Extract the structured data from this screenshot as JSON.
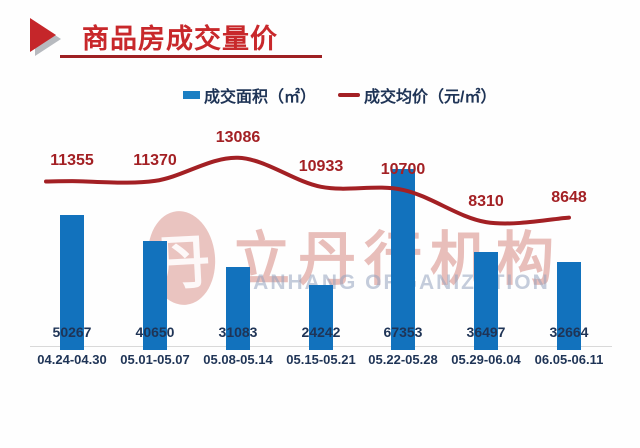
{
  "header": {
    "title": "商品房成交量价"
  },
  "legend": {
    "area_label": "成交面积（㎡）",
    "price_label": "成交均价（元/㎡）"
  },
  "watermark": {
    "seal_char": "丹",
    "cn_text": "立丹行机构",
    "en_text": "DANHANG ORGANIZATION"
  },
  "colors": {
    "bar_blue": "#1272BD",
    "line_red": "#A32024",
    "title_red": "#C8282B",
    "underline_red": "#9E2023",
    "text_navy": "#1F3456",
    "baseline_gray": "#D9D9D9",
    "watermark_red": "#C6584E",
    "watermark_blue": "#96A2BE"
  },
  "chart_data": {
    "type": "bar",
    "title": "商品房成交量价",
    "categories": [
      "04.24-04.30",
      "05.01-05.07",
      "05.08-05.14",
      "05.15-05.21",
      "05.22-05.28",
      "05.29-06.04",
      "06.05-06.11"
    ],
    "series": [
      {
        "name": "成交面积（㎡）",
        "type": "bar",
        "values": [
          50267,
          40650,
          31083,
          24242,
          67353,
          36497,
          32664
        ]
      },
      {
        "name": "成交均价（元/㎡）",
        "type": "line",
        "values": [
          11355,
          11370,
          13086,
          10933,
          10700,
          8310,
          8648
        ]
      }
    ],
    "value_labels_shown": true,
    "grid": false,
    "legend_position": "top"
  }
}
